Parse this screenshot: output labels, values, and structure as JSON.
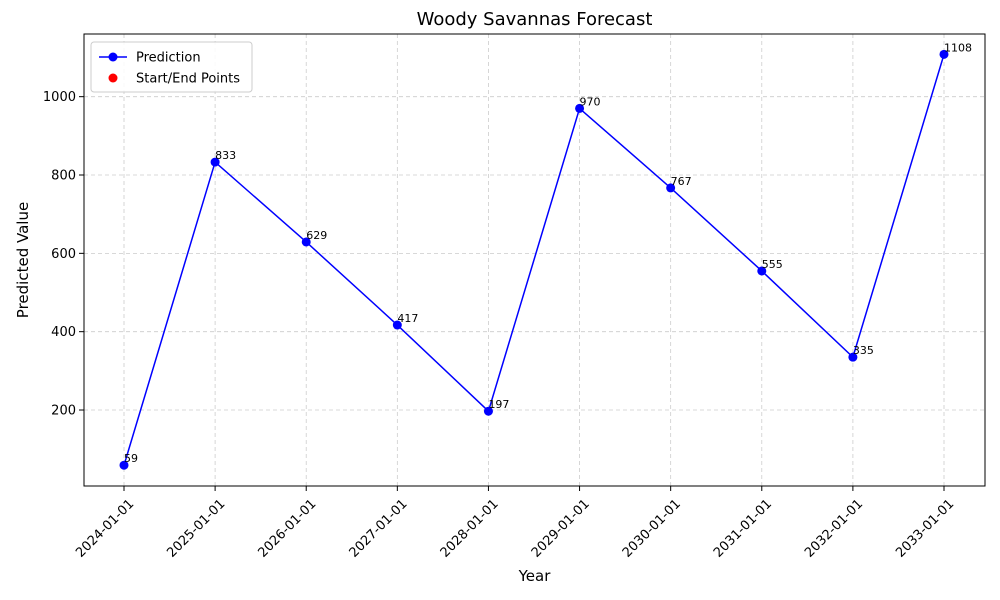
{
  "chart_data": {
    "type": "line",
    "title": "Woody Savannas Forecast",
    "xlabel": "Year",
    "ylabel": "Predicted Value",
    "x": [
      "2024-01-01",
      "2025-01-01",
      "2026-01-01",
      "2027-01-01",
      "2028-01-01",
      "2029-01-01",
      "2030-01-01",
      "2031-01-01",
      "2032-01-01",
      "2033-01-01"
    ],
    "series": [
      {
        "name": "Prediction",
        "values": [
          59,
          833,
          629,
          417,
          197,
          970,
          767,
          555,
          335,
          1108
        ],
        "color": "#0000ff",
        "marker": "circle"
      }
    ],
    "start_end_points": {
      "name": "Start/End Points",
      "color": "#ff0000",
      "marker": "circle"
    },
    "ylim": [
      6,
      1160
    ],
    "yticks": [
      200,
      400,
      600,
      800,
      1000
    ],
    "grid": true,
    "legend_position": "top-left"
  }
}
